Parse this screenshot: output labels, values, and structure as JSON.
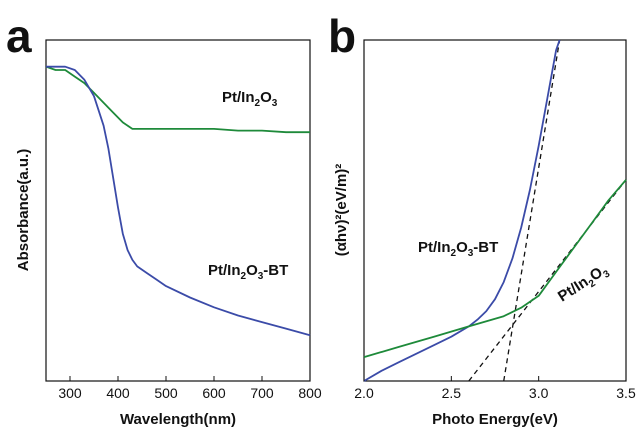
{
  "chart_data": [
    {
      "panel": "a",
      "type": "line",
      "xlabel": "Wavelength(nm)",
      "ylabel": "Absorbance(a.u.)",
      "xlim": [
        250,
        800
      ],
      "ylim": [
        0,
        1
      ],
      "xticks": [
        300,
        400,
        500,
        600,
        700,
        800
      ],
      "yticks_shown": false,
      "series": [
        {
          "name": "Pt/In2O3",
          "label_text": {
            "base": "Pt/In",
            "sub": "2",
            "base2": "O",
            "sub2": "3",
            "suffix": ""
          },
          "color": "#1e8a3a",
          "x": [
            250,
            270,
            290,
            310,
            330,
            350,
            370,
            390,
            410,
            430,
            450,
            500,
            550,
            600,
            650,
            700,
            750,
            800
          ],
          "y": [
            0.96,
            0.95,
            0.95,
            0.93,
            0.91,
            0.88,
            0.85,
            0.82,
            0.79,
            0.77,
            0.77,
            0.77,
            0.77,
            0.77,
            0.765,
            0.765,
            0.76,
            0.76
          ]
        },
        {
          "name": "Pt/In2O3-BT",
          "label_text": {
            "base": "Pt/In",
            "sub": "2",
            "base2": "O",
            "sub2": "3",
            "suffix": "-BT"
          },
          "color": "#3b4ba8",
          "x": [
            250,
            270,
            290,
            310,
            330,
            350,
            370,
            380,
            390,
            400,
            410,
            420,
            430,
            440,
            460,
            480,
            500,
            550,
            600,
            650,
            700,
            750,
            800
          ],
          "y": [
            0.96,
            0.96,
            0.96,
            0.95,
            0.92,
            0.87,
            0.78,
            0.71,
            0.62,
            0.53,
            0.45,
            0.4,
            0.37,
            0.35,
            0.33,
            0.31,
            0.29,
            0.255,
            0.225,
            0.2,
            0.18,
            0.16,
            0.14
          ]
        }
      ]
    },
    {
      "panel": "b",
      "type": "line",
      "xlabel": "Photo Energy(eV)",
      "ylabel": "(αhν)²(eV/m)²",
      "xlim": [
        2.0,
        3.5
      ],
      "ylim": [
        0,
        1
      ],
      "xticks": [
        2.0,
        2.5,
        3.0,
        3.5
      ],
      "xtick_labels": [
        "2.0",
        "2.5",
        "3.0",
        "3.5"
      ],
      "yticks_shown": false,
      "series": [
        {
          "name": "Pt/In2O3-BT",
          "label_text": {
            "base": "Pt/In",
            "sub": "2",
            "base2": "O",
            "sub2": "3",
            "suffix": "-BT"
          },
          "color": "#3b4ba8",
          "x": [
            2.0,
            2.1,
            2.2,
            2.3,
            2.4,
            2.5,
            2.6,
            2.65,
            2.7,
            2.75,
            2.8,
            2.85,
            2.9,
            2.95,
            3.0,
            3.05,
            3.1,
            3.12
          ],
          "y": [
            0.0,
            0.03,
            0.055,
            0.08,
            0.105,
            0.13,
            0.16,
            0.18,
            0.205,
            0.24,
            0.29,
            0.36,
            0.45,
            0.56,
            0.69,
            0.83,
            0.97,
            1.0
          ]
        },
        {
          "name": "Pt/In2O3",
          "label_text": {
            "base": "Pt/In",
            "sub": "2",
            "base2": "O",
            "sub2": "3",
            "suffix": ""
          },
          "color": "#1e8a3a",
          "x": [
            2.0,
            2.2,
            2.4,
            2.6,
            2.8,
            2.9,
            3.0,
            3.1,
            3.2,
            3.3,
            3.4,
            3.5
          ],
          "y": [
            0.07,
            0.1,
            0.13,
            0.16,
            0.19,
            0.215,
            0.25,
            0.32,
            0.39,
            0.46,
            0.53,
            0.59
          ]
        }
      ],
      "fit_lines": [
        {
          "x": [
            2.8,
            3.12
          ],
          "y": [
            0.0,
            1.0
          ]
        },
        {
          "x": [
            2.6,
            3.5
          ],
          "y": [
            0.0,
            0.59
          ]
        }
      ]
    }
  ],
  "panel_letters": [
    "a",
    "b"
  ]
}
